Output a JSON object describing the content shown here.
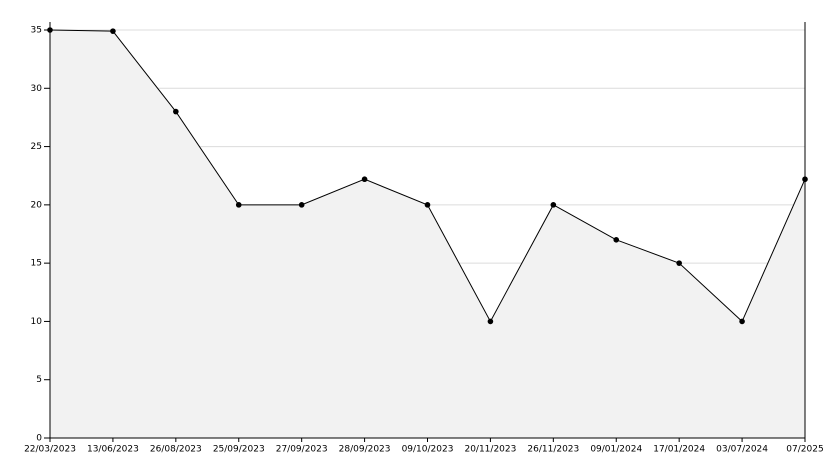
{
  "chart_data": {
    "type": "area-line",
    "categories": [
      "22/03/2023",
      "13/06/2023",
      "26/08/2023",
      "25/09/2023",
      "27/09/2023",
      "28/09/2023",
      "09/10/2023",
      "20/11/2023",
      "26/11/2023",
      "09/01/2024",
      "17/01/2024",
      "03/07/2024",
      "07/2025"
    ],
    "values": [
      35,
      34.9,
      28,
      20,
      20,
      22.2,
      20,
      10,
      20,
      17,
      15,
      10,
      22.2
    ],
    "color": "#000000",
    "fill": "#f2f2f2",
    "ylim": [
      0,
      35
    ],
    "yticks": [
      0,
      5,
      10,
      15,
      20,
      25,
      30,
      35
    ],
    "grid": true
  }
}
